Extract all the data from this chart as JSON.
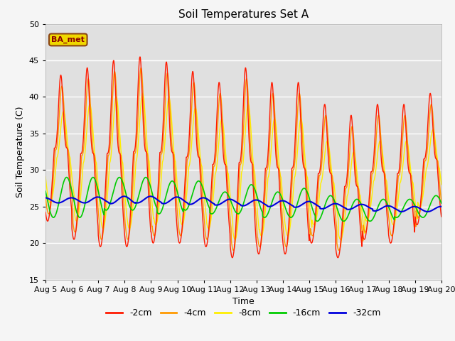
{
  "title": "Soil Temperatures Set A",
  "xlabel": "Time",
  "ylabel": "Soil Temperature (C)",
  "ylim": [
    15,
    50
  ],
  "yticks": [
    15,
    20,
    25,
    30,
    35,
    40,
    45,
    50
  ],
  "xtick_labels": [
    "Aug 5",
    "Aug 6",
    "Aug 7",
    "Aug 8",
    "Aug 9",
    "Aug 10",
    "Aug 11",
    "Aug 12",
    "Aug 13",
    "Aug 14",
    "Aug 15",
    "Aug 16",
    "Aug 17",
    "Aug 18",
    "Aug 19",
    "Aug 20"
  ],
  "legend_label": "BA_met",
  "series_colors": [
    "#ff1a00",
    "#ff9900",
    "#ffee00",
    "#00cc00",
    "#0000dd"
  ],
  "series_labels": [
    "-2cm",
    "-4cm",
    "-8cm",
    "-16cm",
    "-32cm"
  ],
  "bg_color": "#e0e0e0",
  "plot_bg_color": "#e0e0e0",
  "fig_bg_color": "#f5f5f5"
}
